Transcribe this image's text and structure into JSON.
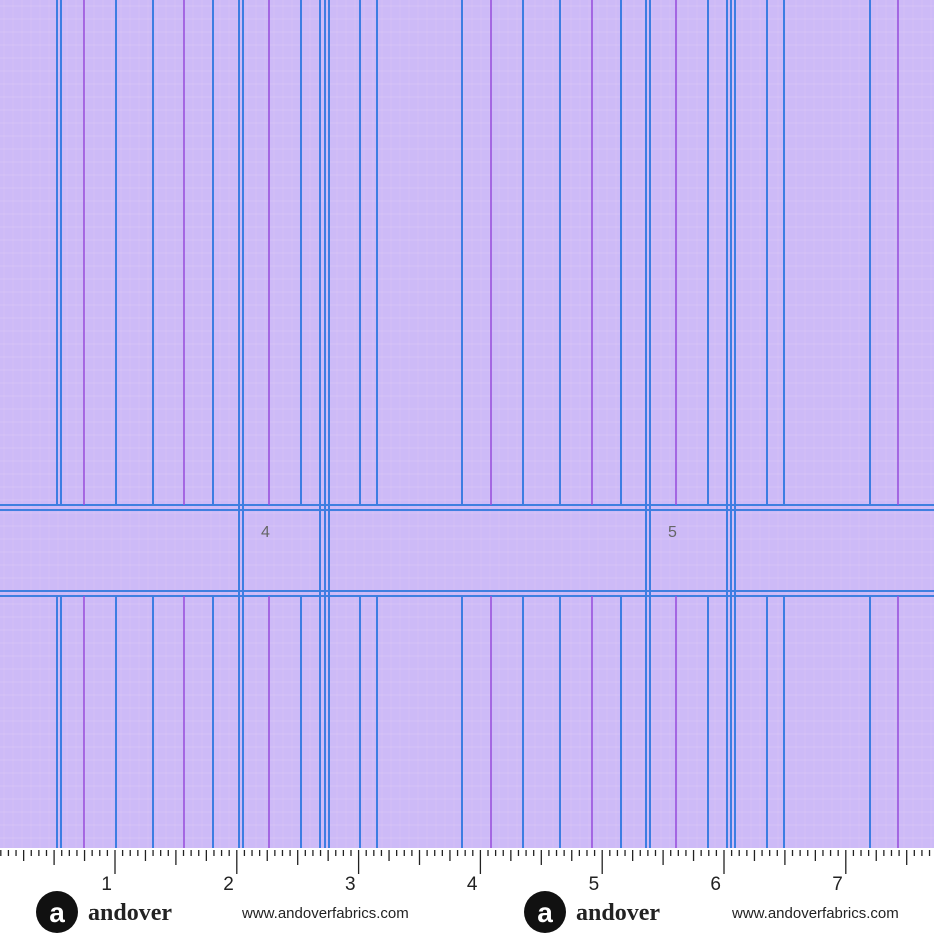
{
  "fabric": {
    "labels": [
      "4",
      "5"
    ]
  },
  "ruler": {
    "numbers": [
      "1",
      "2",
      "3",
      "4",
      "5",
      "6",
      "7"
    ]
  },
  "brand": [
    "andover",
    "andover"
  ],
  "urls": [
    "www.andoverfabrics.com",
    "www.andoverfabrics.com"
  ]
}
